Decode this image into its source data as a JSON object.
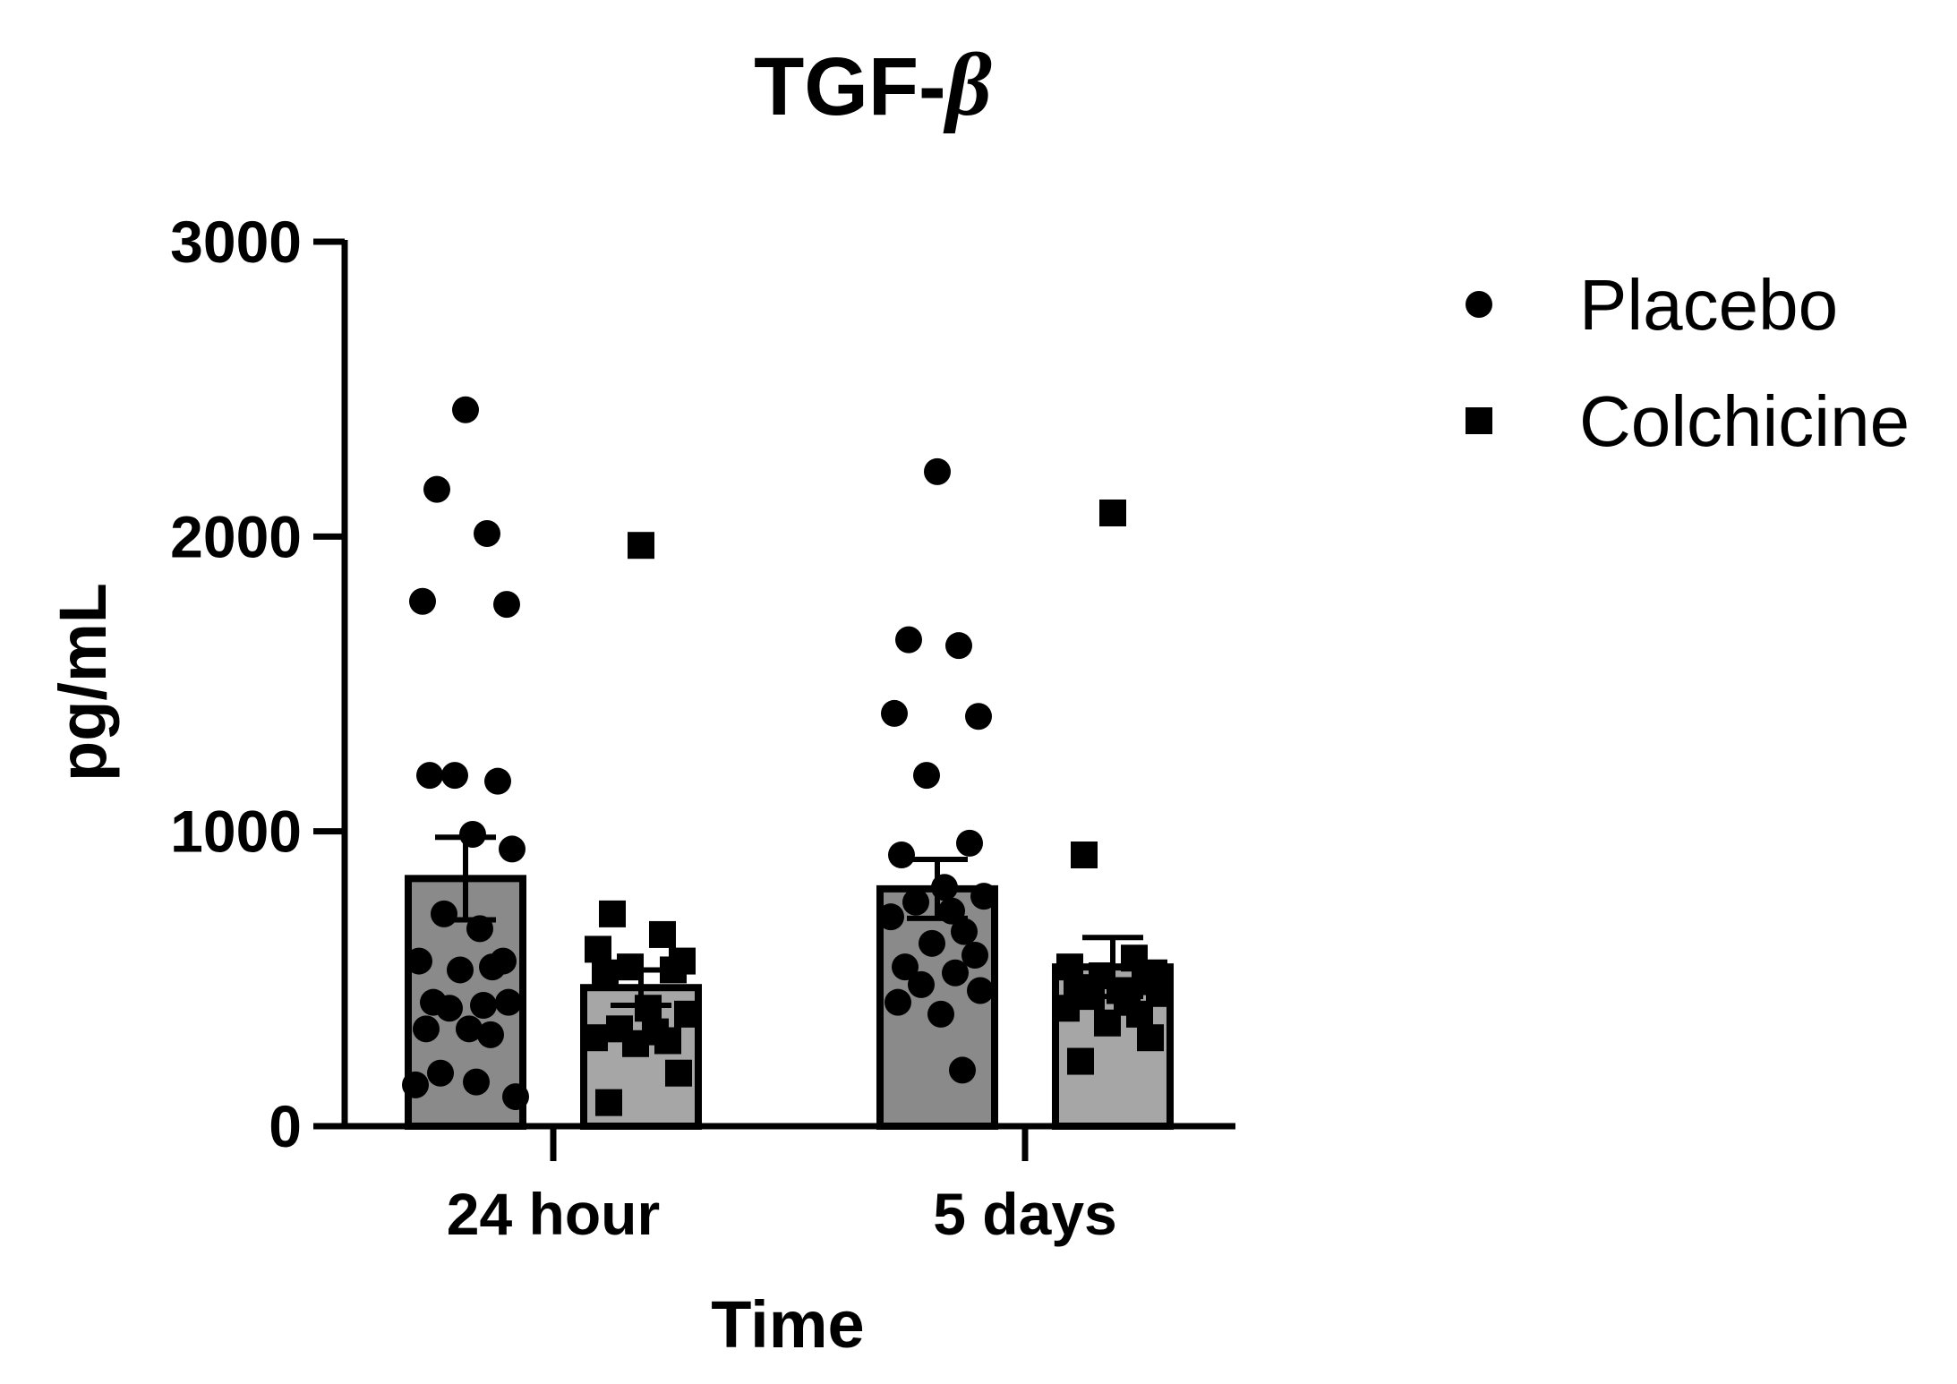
{
  "chart_data": {
    "type": "bar",
    "title_main": "TGF-",
    "title_symbol": "β",
    "xlabel": "Time",
    "ylabel": "pg/mL",
    "categories": [
      "24 hour",
      "5 days"
    ],
    "ylim": [
      0,
      3000
    ],
    "yticks": [
      "0",
      "1000",
      "2000",
      "3000"
    ],
    "legend_position": "top-right",
    "bar_colors": {
      "Placebo": "#8a8a8a",
      "Colchicine": "#a6a6a6"
    },
    "series": [
      {
        "name": "Placebo",
        "marker": "circle",
        "values": [
          840,
          805
        ],
        "sem": [
          140,
          100
        ],
        "points": [
          [
            2430,
            2160,
            2010,
            1780,
            1770,
            1190,
            1170,
            1190,
            990,
            940,
            720,
            670,
            560,
            540,
            530,
            560,
            420,
            410,
            400,
            420,
            330,
            330,
            310,
            180,
            150,
            140,
            100
          ],
          [
            2220,
            1650,
            1630,
            1400,
            1390,
            1190,
            960,
            920,
            810,
            780,
            760,
            730,
            710,
            660,
            620,
            580,
            540,
            520,
            480,
            460,
            420,
            380,
            190
          ]
        ]
      },
      {
        "name": "Colchicine",
        "marker": "square",
        "values": [
          470,
          540
        ],
        "sem": [
          60,
          100
        ],
        "points": [
          [
            1970,
            720,
            650,
            600,
            560,
            540,
            530,
            520,
            400,
            380,
            330,
            320,
            300,
            290,
            280,
            180,
            80
          ],
          [
            2080,
            920,
            570,
            540,
            520,
            510,
            490,
            470,
            460,
            450,
            440,
            420,
            400,
            380,
            350,
            300,
            220
          ]
        ]
      }
    ]
  }
}
